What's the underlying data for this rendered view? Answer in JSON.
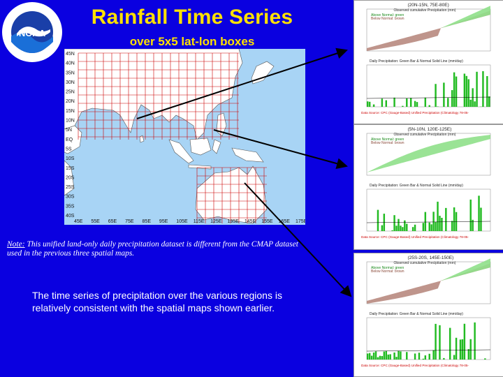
{
  "slide": {
    "title": "Rainfall Time Series",
    "subtitle": "over 5x5 lat-lon boxes",
    "note_label": "Note:",
    "note_text": " This unified land-only daily precipitation dataset is different from the CMAP dataset used in the previous three spatial maps.",
    "body": "The time series of precipitation over the various regions is relatively consistent with the spatial maps shown earlier."
  },
  "logo": {
    "name": "noaa-logo",
    "text": "NOAA",
    "ring_text": "NATIONAL OCEANIC AND ATMOSPHERIC ADMINISTRATION U.S. DEPARTMENT OF COMMERCE"
  },
  "map": {
    "lat_labels": [
      "45N",
      "40N",
      "35N",
      "30N",
      "25N",
      "20N",
      "15N",
      "10N",
      "5N",
      "EQ",
      "5S",
      "10S",
      "15S",
      "20S",
      "25S",
      "30S",
      "35S",
      "40S"
    ],
    "lon_labels": [
      "45E",
      "55E",
      "65E",
      "75E",
      "85E",
      "95E",
      "105E",
      "115E",
      "125E",
      "135E",
      "145E",
      "155E",
      "165E",
      "175E"
    ]
  },
  "panels": [
    {
      "header": "(20N-15N, 75E-80E)",
      "cum_title": "Observed cumulative Precipitation (mm)",
      "legend_above": "Above Normal: green",
      "legend_below": "Below Normal: brown",
      "daily_title": "Daily Precipitation: Green Bar & Normal Solid Line (mm/day)",
      "source": "Data Source: CPC (Gauge-Based) Unified Precipitation (Climatology 78-05-"
    },
    {
      "header": "(5N-10N, 120E-125E)",
      "cum_title": "Observed cumulative Precipitation (mm)",
      "legend_above": "Above Normal: green",
      "legend_below": "Below Normal: brown",
      "daily_title": "Daily Precipitation: Green Bar & Normal Solid Line (mm/day)",
      "source": "Data Source: CPC (Gauge-Based) Unified Precipitation (Climatology 78-05-"
    },
    {
      "header": "(25S-20S, 145E-150E)",
      "cum_title": "Observed cumulative Precipitation (mm)",
      "legend_above": "Above Normal: green",
      "legend_below": "Below Normal: brown",
      "daily_title": "Daily Precipitation: Green Bar & Normal Solid Line (mm/day)",
      "source": "Data Source: CPC (Gauge-Based) Unified Precipitation (Climatology 78-05-"
    }
  ],
  "colors": {
    "background": "#0a00e0",
    "title": "#ffe100",
    "ocean": "#a8d4f5",
    "land": "#ffffff",
    "grid": "#cc0000",
    "above": "#8fe08a",
    "below": "#b88a80",
    "bar": "#22bb22",
    "arrow": "#000000"
  }
}
